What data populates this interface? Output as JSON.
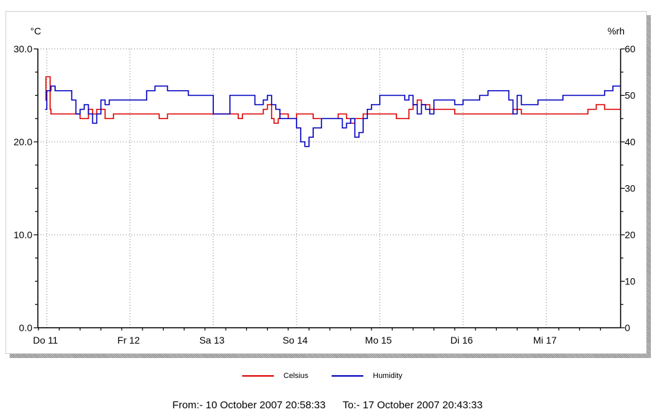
{
  "chart_data": {
    "type": "line",
    "x_unit": "day-of-period",
    "x_categories": [
      "Do 11",
      "Fr 12",
      "Sa 13",
      "So 14",
      "Mo 15",
      "Di 16",
      "Mi 17"
    ],
    "left_axis": {
      "label": "°C",
      "ylim": [
        0,
        30
      ],
      "ticks": [
        "0.0",
        "10.0",
        "20.0",
        "30.0"
      ]
    },
    "right_axis": {
      "label": "%rh",
      "ylim": [
        0,
        60
      ],
      "ticks": [
        "0",
        "10",
        "20",
        "30",
        "40",
        "50",
        "60"
      ]
    },
    "grid": true,
    "legend_position": "bottom",
    "series": [
      {
        "name": "Celsius",
        "axis": "left",
        "color": "#dd0000",
        "x": [
          -0.02,
          -0.01,
          0.04,
          0.05,
          0.1,
          0.2,
          0.3,
          0.4,
          0.42,
          0.5,
          0.55,
          0.6,
          0.65,
          0.7,
          0.8,
          0.9,
          1.0,
          1.1,
          1.2,
          1.3,
          1.35,
          1.45,
          1.5,
          1.6,
          1.8,
          2.0,
          2.2,
          2.3,
          2.35,
          2.45,
          2.55,
          2.6,
          2.65,
          2.7,
          2.73,
          2.78,
          2.8,
          2.85,
          2.9,
          3.0,
          3.1,
          3.2,
          3.3,
          3.4,
          3.5,
          3.6,
          3.65,
          3.7,
          3.75,
          3.8,
          3.85,
          3.9,
          4.0,
          4.1,
          4.2,
          4.25,
          4.3,
          4.35,
          4.4,
          4.45,
          4.5,
          4.6,
          4.7,
          4.8,
          4.9,
          5.0,
          5.2,
          5.4,
          5.5,
          5.6,
          5.7,
          5.8,
          5.9,
          6.0,
          6.2,
          6.4,
          6.5,
          6.6,
          6.7,
          6.8,
          6.88
        ],
        "values": [
          24.5,
          27.0,
          23.5,
          23.0,
          23.0,
          23.0,
          23.0,
          22.5,
          22.5,
          23.5,
          23.0,
          23.5,
          23.5,
          22.5,
          23.0,
          23.0,
          23.0,
          23.0,
          23.0,
          23.0,
          22.5,
          23.0,
          23.0,
          23.0,
          23.0,
          23.0,
          23.0,
          22.5,
          23.0,
          23.0,
          23.0,
          23.5,
          24.0,
          22.5,
          22.0,
          22.5,
          23.0,
          23.0,
          22.5,
          23.0,
          23.0,
          22.5,
          22.5,
          22.5,
          23.0,
          22.5,
          22.0,
          22.5,
          22.5,
          23.0,
          23.0,
          23.0,
          23.0,
          23.0,
          22.5,
          22.5,
          22.5,
          23.5,
          24.0,
          24.5,
          24.0,
          23.5,
          23.5,
          23.5,
          23.0,
          23.0,
          23.0,
          23.0,
          23.0,
          23.5,
          23.0,
          23.0,
          23.0,
          23.0,
          23.0,
          23.0,
          23.5,
          24.0,
          23.5,
          23.5,
          23.5
        ]
      },
      {
        "name": "Humidity",
        "axis": "right",
        "color": "#0000c0",
        "x": [
          -0.02,
          0.0,
          0.05,
          0.1,
          0.2,
          0.3,
          0.35,
          0.4,
          0.45,
          0.5,
          0.55,
          0.6,
          0.65,
          0.7,
          0.75,
          0.8,
          0.9,
          1.0,
          1.2,
          1.3,
          1.45,
          1.55,
          1.6,
          1.7,
          1.8,
          2.0,
          2.2,
          2.4,
          2.5,
          2.6,
          2.65,
          2.7,
          2.75,
          2.8,
          3.0,
          3.05,
          3.1,
          3.15,
          3.2,
          3.3,
          3.4,
          3.45,
          3.5,
          3.55,
          3.6,
          3.65,
          3.7,
          3.75,
          3.8,
          3.85,
          3.9,
          4.0,
          4.1,
          4.2,
          4.3,
          4.35,
          4.4,
          4.45,
          4.5,
          4.55,
          4.6,
          4.65,
          4.7,
          4.8,
          4.9,
          5.0,
          5.2,
          5.3,
          5.4,
          5.5,
          5.55,
          5.6,
          5.65,
          5.7,
          5.75,
          5.8,
          5.9,
          6.0,
          6.2,
          6.3,
          6.4,
          6.5,
          6.6,
          6.7,
          6.8,
          6.88
        ],
        "values": [
          47,
          51,
          52,
          51,
          51,
          49,
          46,
          47,
          48,
          46,
          44,
          46,
          49,
          48,
          49,
          49,
          49,
          49,
          51,
          52,
          51,
          51,
          51,
          50,
          50,
          46,
          50,
          50,
          48,
          49,
          50,
          48,
          47,
          45,
          43,
          40,
          39,
          41,
          43,
          45,
          45,
          45,
          45,
          43,
          44,
          45,
          41,
          42,
          45,
          47,
          48,
          50,
          50,
          50,
          49,
          50,
          48,
          46,
          48,
          47,
          46,
          49,
          49,
          49,
          48,
          49,
          50,
          51,
          51,
          51,
          49,
          46,
          50,
          48,
          48,
          48,
          49,
          49,
          50,
          50,
          50,
          50,
          50,
          51,
          52,
          52
        ]
      }
    ]
  },
  "footer": {
    "from_label": "From:-",
    "from_value": "10 October 2007 20:58:33",
    "to_label": "To:-",
    "to_value": "17 October 2007 20:43:33"
  }
}
